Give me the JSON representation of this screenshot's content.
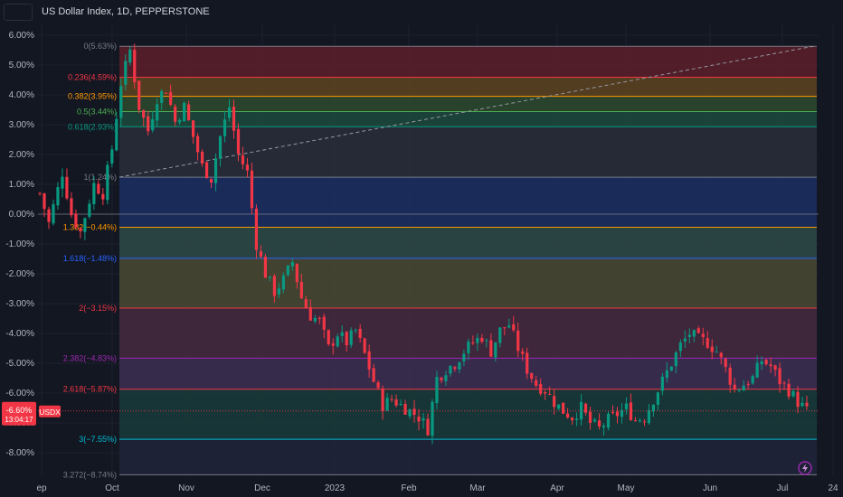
{
  "header": {
    "title": "US Dollar Index, 1D, PEPPERSTONE"
  },
  "badge": {
    "value": "-6.60%",
    "time": "13:04:17",
    "symbol": "USDX"
  },
  "colors": {
    "up": "#089981",
    "down": "#f23645",
    "bg": "#131722",
    "grid": "#1e222d"
  },
  "chart_data": {
    "type": "candlestick",
    "title": "US Dollar Index, 1D, PEPPERSTONE",
    "yaxis": {
      "unit": "%",
      "ylim": [
        -8.8,
        6.2
      ],
      "ticks": [
        "6.00%",
        "5.00%",
        "4.00%",
        "3.00%",
        "2.00%",
        "1.00%",
        "0.00%",
        "-1.00%",
        "-2.00%",
        "-3.00%",
        "-4.00%",
        "-5.00%",
        "-6.00%",
        "-7.00%",
        "-8.00%"
      ]
    },
    "xaxis": {
      "ticks": [
        "ep",
        "Oct",
        "Nov",
        "Dec",
        "2023",
        "Feb",
        "Mar",
        "Apr",
        "May",
        "Jun",
        "Jul",
        "24"
      ]
    },
    "fib_levels": [
      {
        "ratio": "0",
        "value": 5.63,
        "label": "0(5.63%)",
        "color": "#787b86",
        "fill": "#5c1f2a"
      },
      {
        "ratio": "0.236",
        "value": 4.59,
        "label": "0.236(4.59%)",
        "color": "#f23645",
        "fill": "#5e4420"
      },
      {
        "ratio": "0.382",
        "value": 3.95,
        "label": "0.382(3.95%)",
        "color": "#ff9800",
        "fill": "#2e4a2e"
      },
      {
        "ratio": "0.5",
        "value": 3.44,
        "label": "0.5(3.44%)",
        "color": "#4caf50",
        "fill": "#1d4a3c"
      },
      {
        "ratio": "0.618",
        "value": 2.93,
        "label": "0.618(2.93%)",
        "color": "#089981",
        "fill": "#2a2e39"
      },
      {
        "ratio": "1",
        "value": 1.24,
        "label": "1(1.24%)",
        "color": "#787b86",
        "fill": "#1c2f63"
      },
      {
        "ratio": "1.382",
        "value": -0.44,
        "label": "1.382(−0.44%)",
        "color": "#ff9800",
        "fill": "#2e4a48"
      },
      {
        "ratio": "1.618",
        "value": -1.48,
        "label": "1.618(−1.48%)",
        "color": "#2962ff",
        "fill": "#4a4a33"
      },
      {
        "ratio": "2",
        "value": -3.15,
        "label": "2(−3.15%)",
        "color": "#f23645",
        "fill": "#46293f"
      },
      {
        "ratio": "2.382",
        "value": -4.83,
        "label": "2.382(−4.83%)",
        "color": "#9c27b0",
        "fill": "#3e2f52"
      },
      {
        "ratio": "2.618",
        "value": -5.87,
        "label": "2.618(−5.87%)",
        "color": "#f23645",
        "fill": "#193b3a"
      },
      {
        "ratio": "3",
        "value": -7.55,
        "label": "3(−7.55%)",
        "color": "#00bcd4",
        "fill": "#20243a"
      },
      {
        "ratio": "3.272",
        "value": -8.74,
        "label": "3.272(−8.74%)",
        "color": "#787b86",
        "fill": ""
      }
    ],
    "series_path": [
      [
        0,
        0.7
      ],
      [
        2,
        -0.3
      ],
      [
        5,
        1.4
      ],
      [
        7,
        0.0
      ],
      [
        9,
        -0.6
      ],
      [
        12,
        1.0
      ],
      [
        14,
        0.7
      ],
      [
        16,
        2.2
      ],
      [
        18,
        4.4
      ],
      [
        20,
        5.5
      ],
      [
        22,
        3.6
      ],
      [
        24,
        2.8
      ],
      [
        26,
        3.9
      ],
      [
        28,
        4.2
      ],
      [
        30,
        3.1
      ],
      [
        32,
        3.6
      ],
      [
        34,
        2.6
      ],
      [
        36,
        1.6
      ],
      [
        38,
        1.2
      ],
      [
        40,
        2.6
      ],
      [
        42,
        3.6
      ],
      [
        44,
        2.0
      ],
      [
        46,
        1.4
      ],
      [
        48,
        -1.0
      ],
      [
        50,
        -2.0
      ],
      [
        52,
        -2.6
      ],
      [
        54,
        -2.2
      ],
      [
        56,
        -1.6
      ],
      [
        58,
        -2.8
      ],
      [
        60,
        -3.4
      ],
      [
        62,
        -3.6
      ],
      [
        64,
        -4.5
      ],
      [
        66,
        -4.0
      ],
      [
        68,
        -4.3
      ],
      [
        70,
        -3.9
      ],
      [
        72,
        -4.7
      ],
      [
        74,
        -5.6
      ],
      [
        76,
        -6.4
      ],
      [
        78,
        -6.2
      ],
      [
        80,
        -6.4
      ],
      [
        82,
        -6.6
      ],
      [
        84,
        -6.8
      ],
      [
        86,
        -7.2
      ],
      [
        88,
        -5.5
      ],
      [
        90,
        -5.2
      ],
      [
        92,
        -5.0
      ],
      [
        94,
        -4.6
      ],
      [
        96,
        -4.3
      ],
      [
        98,
        -4.1
      ],
      [
        100,
        -4.6
      ],
      [
        102,
        -3.9
      ],
      [
        104,
        -3.7
      ],
      [
        106,
        -4.5
      ],
      [
        108,
        -5.2
      ],
      [
        110,
        -5.7
      ],
      [
        112,
        -5.9
      ],
      [
        114,
        -6.3
      ],
      [
        116,
        -6.6
      ],
      [
        118,
        -6.8
      ],
      [
        120,
        -6.5
      ],
      [
        122,
        -7.0
      ],
      [
        124,
        -7.2
      ],
      [
        126,
        -6.9
      ],
      [
        128,
        -6.7
      ],
      [
        130,
        -6.5
      ],
      [
        132,
        -6.9
      ],
      [
        134,
        -6.8
      ],
      [
        136,
        -6.2
      ],
      [
        138,
        -5.6
      ],
      [
        140,
        -5.0
      ],
      [
        142,
        -4.4
      ],
      [
        144,
        -4.0
      ],
      [
        146,
        -4.2
      ],
      [
        148,
        -4.3
      ],
      [
        150,
        -4.6
      ],
      [
        152,
        -5.2
      ],
      [
        154,
        -5.9
      ],
      [
        156,
        -5.7
      ],
      [
        158,
        -5.5
      ],
      [
        160,
        -4.9
      ],
      [
        162,
        -5.1
      ],
      [
        164,
        -5.6
      ],
      [
        166,
        -5.9
      ],
      [
        168,
        -6.3
      ],
      [
        170,
        -6.6
      ]
    ]
  }
}
